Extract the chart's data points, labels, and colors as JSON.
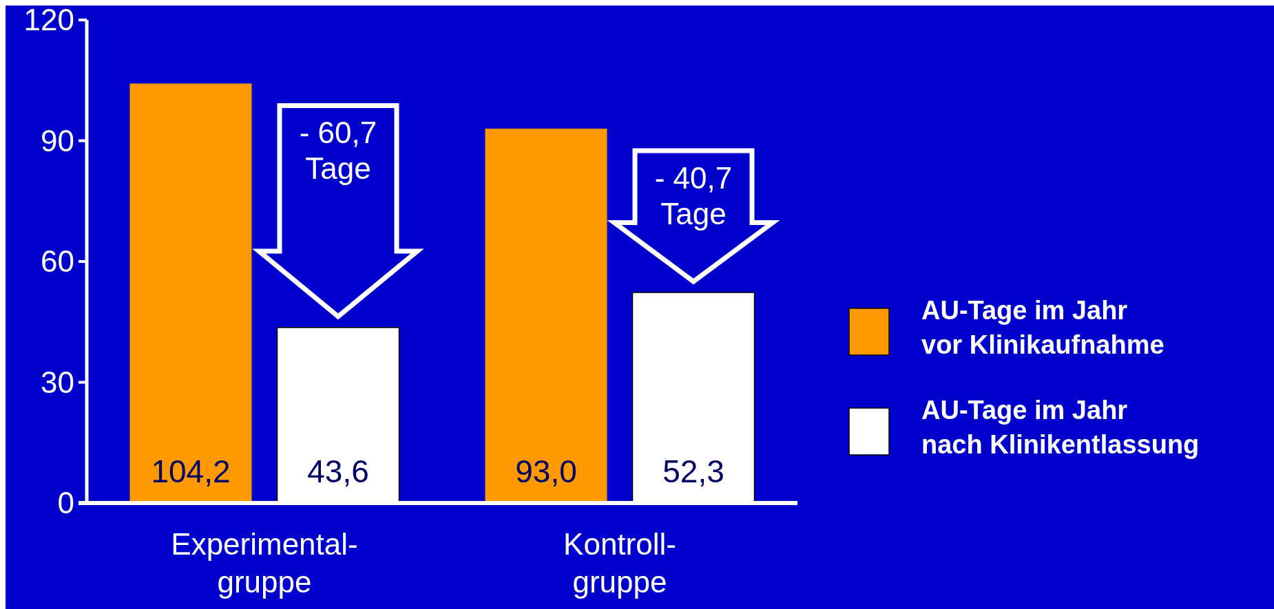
{
  "chart_data": {
    "type": "bar",
    "categories": [
      "Experimental-\ngruppe",
      "Kontroll-\ngruppe"
    ],
    "series": [
      {
        "name": "AU-Tage im Jahr\nvor Klinikaufnahme",
        "color": "#ff9900",
        "values": [
          104.2,
          93.0
        ],
        "value_labels": [
          "104,2",
          "93,0"
        ]
      },
      {
        "name": "AU-Tage im Jahr\nnach Klinikentlassung",
        "color": "#ffffff",
        "values": [
          43.6,
          52.3
        ],
        "value_labels": [
          "43,6",
          "52,3"
        ]
      }
    ],
    "ylim": [
      0,
      120
    ],
    "yticks": [
      0,
      30,
      60,
      90,
      120
    ],
    "legend": "right",
    "grid": false,
    "annotations": [
      "- 60,7\nTage",
      "- 40,7\nTage"
    ]
  }
}
